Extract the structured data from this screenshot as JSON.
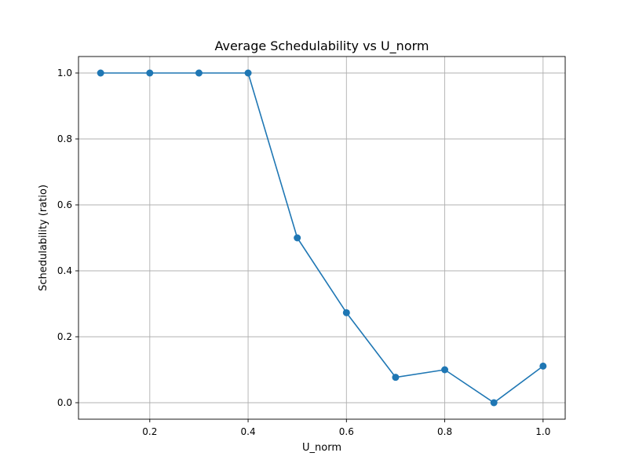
{
  "chart_data": {
    "type": "line",
    "title": "Average Schedulability vs U_norm",
    "xlabel": "U_norm",
    "ylabel": "Schedulability (ratio)",
    "xlim": [
      0.055,
      1.045
    ],
    "ylim": [
      -0.05,
      1.05
    ],
    "xticks": [
      0.2,
      0.4,
      0.6,
      0.8,
      1.0
    ],
    "xtick_labels": [
      "0.2",
      "0.4",
      "0.6",
      "0.8",
      "1.0"
    ],
    "yticks": [
      0.0,
      0.2,
      0.4,
      0.6,
      0.8,
      1.0
    ],
    "ytick_labels": [
      "0.0",
      "0.2",
      "0.4",
      "0.6",
      "0.8",
      "1.0"
    ],
    "grid": true,
    "series": [
      {
        "color": "#1f77b4",
        "marker": "circle",
        "x": [
          0.1,
          0.2,
          0.3,
          0.4,
          0.5,
          0.6,
          0.7,
          0.8,
          0.9,
          1.0
        ],
        "y": [
          1.0,
          1.0,
          1.0,
          1.0,
          0.5,
          0.273,
          0.077,
          0.1,
          0.0,
          0.111
        ]
      }
    ]
  }
}
